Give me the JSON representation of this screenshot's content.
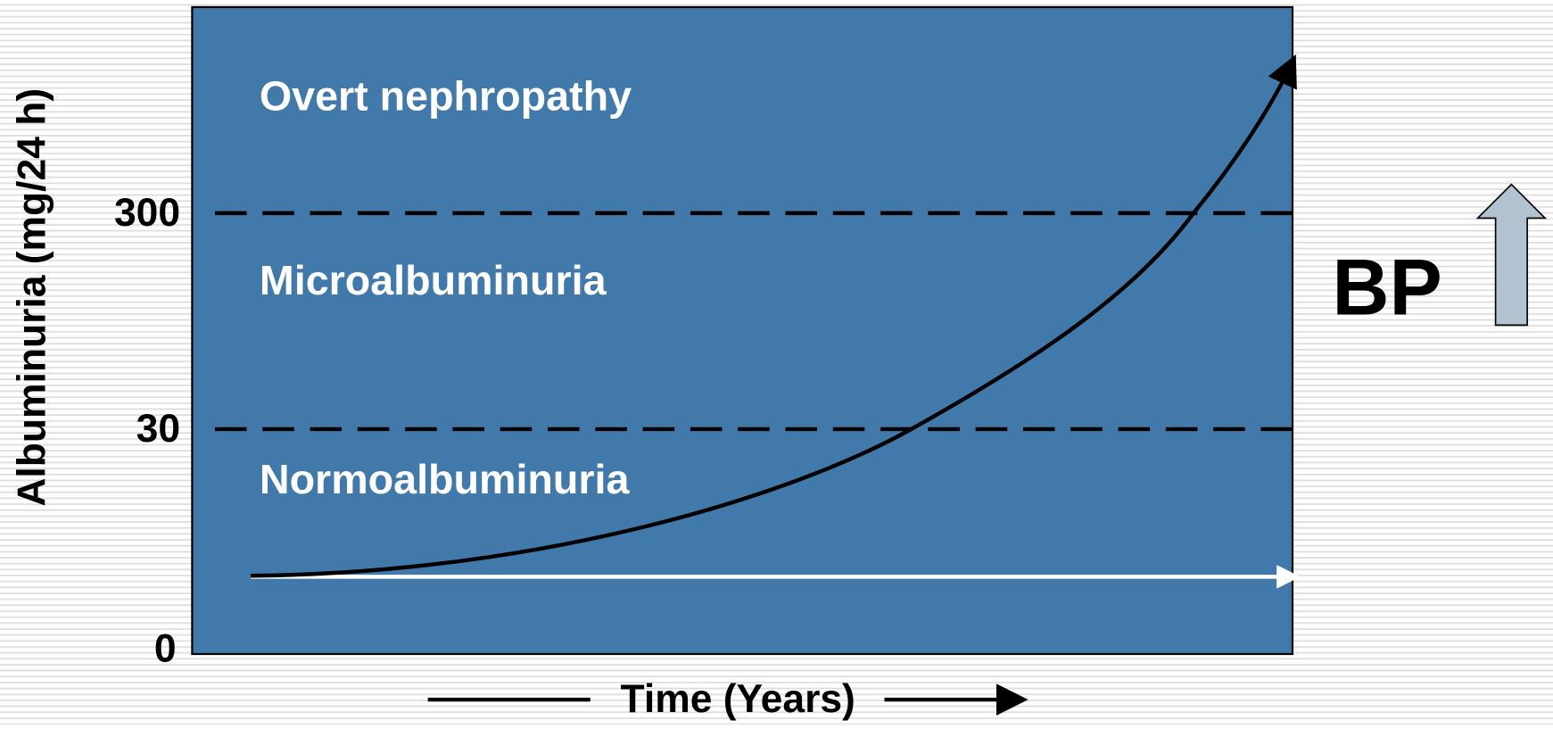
{
  "axis": {
    "y_label": "Albuminuria (mg/24 h)",
    "x_label": "Time (Years)",
    "ticks": [
      300,
      30,
      0
    ]
  },
  "zones": [
    "Overt nephropathy",
    "Microalbuminuria",
    "Normoalbuminuria"
  ],
  "side_label": "BP"
}
